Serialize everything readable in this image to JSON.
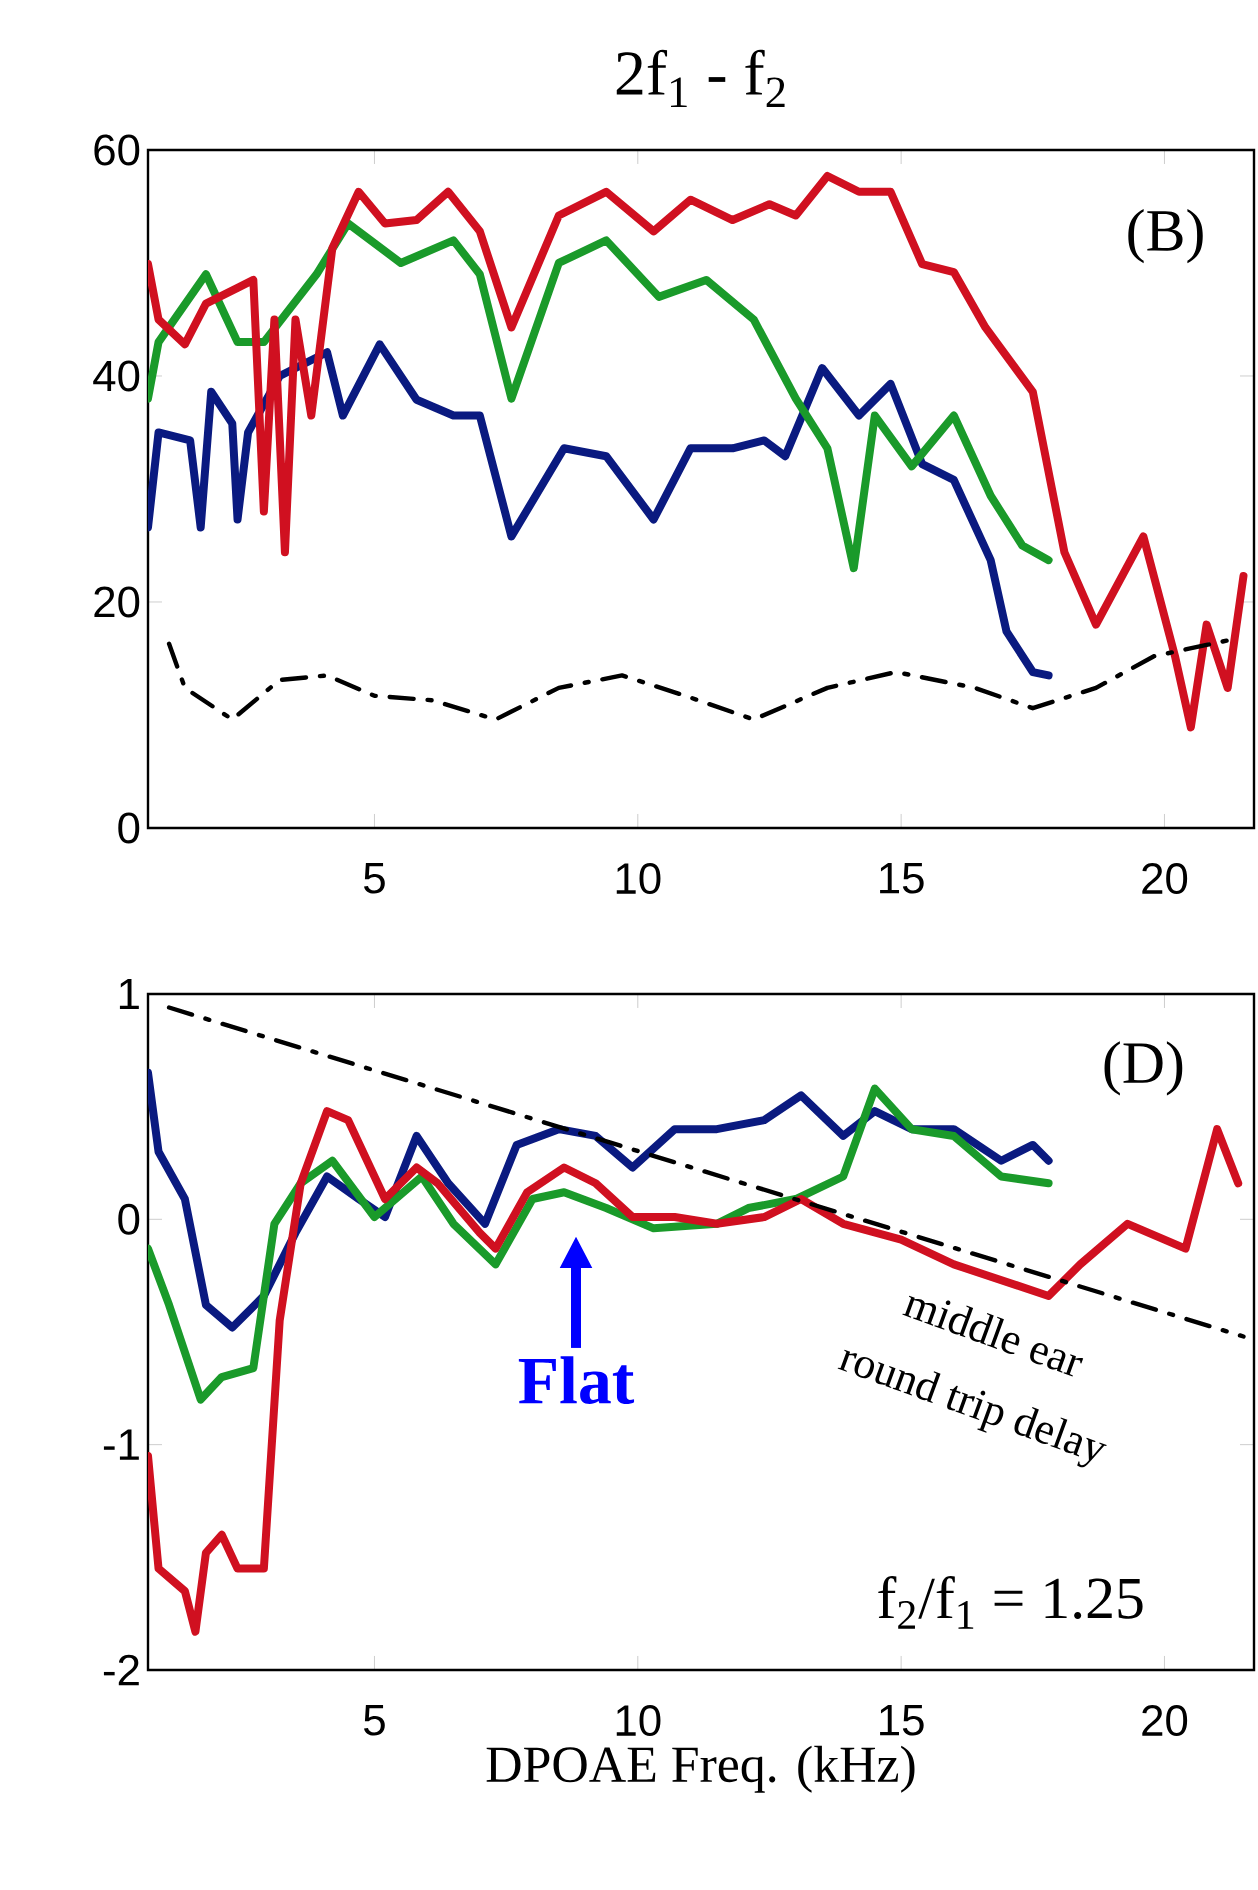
{
  "chart_data": [
    {
      "type": "line",
      "title": "2f$_{1}$ - f$_{2}$",
      "xlim": [
        0.7,
        21.7
      ],
      "ylim": [
        0,
        60
      ],
      "xticks": [
        5,
        10,
        15,
        20
      ],
      "yticks": [
        0,
        20,
        40,
        60
      ],
      "annotations": [
        "(B)"
      ],
      "series": [
        {
          "color": "#0a1a80",
          "x": [
            0.7,
            0.9,
            1.5,
            1.7,
            1.9,
            2.3,
            2.4,
            2.6,
            3.2,
            4.1,
            4.4,
            5.1,
            5.8,
            6.5,
            7.0,
            7.6,
            8.6,
            9.4,
            10.3,
            11.0,
            11.8,
            12.4,
            12.8,
            13.5,
            14.2,
            14.8,
            15.4,
            16.0,
            16.7,
            17.0,
            17.5,
            17.8
          ],
          "values": [
            26.6,
            35,
            34.3,
            26.6,
            38.6,
            35.8,
            27.3,
            35,
            40,
            42.1,
            36.5,
            42.8,
            37.9,
            36.5,
            36.5,
            25.8,
            33.6,
            32.9,
            27.3,
            33.6,
            33.6,
            34.3,
            32.9,
            40.7,
            36.5,
            39.3,
            32.2,
            30.8,
            23.7,
            17.4,
            13.8,
            13.5
          ]
        },
        {
          "color": "#1a9a2a",
          "x": [
            0.7,
            0.9,
            1.8,
            2.4,
            2.9,
            3.9,
            4.5,
            5.5,
            6.5,
            7.0,
            7.6,
            8.5,
            9.4,
            10.4,
            11.3,
            12.2,
            13.0,
            13.6,
            14.1,
            14.5,
            15.2,
            16.0,
            16.7,
            17.3,
            17.8
          ],
          "values": [
            38,
            43,
            49,
            43,
            43,
            49,
            53.5,
            50,
            52,
            49,
            38,
            50,
            52,
            47,
            48.5,
            45,
            38,
            33.6,
            23,
            36.5,
            32,
            36.5,
            29.4,
            25,
            23.7
          ]
        },
        {
          "color": "#d01020",
          "x": [
            0.7,
            0.9,
            1.4,
            1.8,
            2.4,
            2.7,
            2.9,
            3.1,
            3.3,
            3.5,
            3.8,
            4.2,
            4.7,
            5.2,
            5.8,
            6.4,
            7.0,
            7.6,
            8.5,
            9.4,
            10.3,
            11.0,
            11.8,
            12.5,
            13.0,
            13.6,
            14.2,
            14.8,
            15.4,
            16.0,
            16.6,
            17.5,
            18.1,
            18.7,
            19.6,
            20.2,
            20.5,
            20.8,
            21.2,
            21.5
          ],
          "values": [
            49.9,
            45,
            42.8,
            46.4,
            47.8,
            48.5,
            28,
            45,
            24.4,
            45,
            36.5,
            51.3,
            56.3,
            53.5,
            53.8,
            56.3,
            52.8,
            44.3,
            54.2,
            56.3,
            52.8,
            55.6,
            53.8,
            55.2,
            54.2,
            57.7,
            56.3,
            56.3,
            49.9,
            49.2,
            44.3,
            38.6,
            24.4,
            18,
            25.8,
            15.2,
            8.9,
            18,
            12.4,
            22.3
          ]
        },
        {
          "color": "#000000",
          "line_style": "dashdot",
          "x": [
            1.1,
            1.4,
            2.3,
            3.2,
            4.1,
            5.0,
            6.1,
            7.3,
            8.5,
            9.7,
            10.9,
            12.2,
            13.6,
            14.9,
            16.4,
            17.5,
            18.7,
            19.8,
            21.2
          ],
          "values": [
            16.3,
            12.4,
            9.6,
            13.1,
            13.5,
            11.7,
            11.3,
            9.6,
            12.4,
            13.5,
            11.7,
            9.6,
            12.4,
            13.8,
            12.4,
            10.6,
            12.4,
            15.2,
            16.6
          ]
        }
      ]
    },
    {
      "type": "line",
      "xlabel": "DPOAE Freq. (kHz)",
      "xlim": [
        0.7,
        21.7
      ],
      "ylim": [
        -2,
        1
      ],
      "xticks": [
        5,
        10,
        15,
        20
      ],
      "yticks": [
        -2,
        -1,
        0,
        1
      ],
      "annotations": [
        "(D)",
        "Flat",
        "middle ear",
        "round trip delay",
        "f$_{2}$/f$_{1}$ = 1.25"
      ],
      "series": [
        {
          "color": "#0a1a80",
          "x": [
            0.7,
            0.9,
            1.4,
            1.8,
            2.3,
            2.9,
            3.5,
            4.1,
            4.7,
            5.2,
            5.8,
            6.4,
            7.1,
            7.7,
            8.5,
            9.2,
            9.9,
            10.7,
            11.5,
            12.4,
            13.1,
            13.9,
            14.5,
            15.2,
            16.0,
            16.9,
            17.5,
            17.8
          ],
          "values": [
            0.65,
            0.3,
            0.09,
            -0.38,
            -0.48,
            -0.34,
            -0.06,
            0.19,
            0.09,
            0.01,
            0.37,
            0.16,
            -0.02,
            0.33,
            0.4,
            0.37,
            0.23,
            0.4,
            0.4,
            0.44,
            0.55,
            0.37,
            0.48,
            0.4,
            0.4,
            0.26,
            0.33,
            0.26
          ]
        },
        {
          "color": "#1a9a2a",
          "x": [
            0.7,
            1.1,
            1.7,
            2.1,
            2.7,
            3.1,
            3.6,
            4.2,
            5.0,
            5.9,
            6.5,
            7.3,
            8.0,
            8.6,
            9.4,
            10.3,
            11.5,
            12.1,
            13.0,
            13.9,
            14.5,
            15.2,
            16.0,
            16.9,
            17.8
          ],
          "values": [
            -0.13,
            -0.38,
            -0.8,
            -0.7,
            -0.66,
            -0.02,
            0.16,
            0.26,
            0.01,
            0.19,
            -0.02,
            -0.2,
            0.09,
            0.12,
            0.05,
            -0.04,
            -0.02,
            0.05,
            0.09,
            0.19,
            0.58,
            0.4,
            0.37,
            0.19,
            0.16
          ]
        },
        {
          "color": "#d01020",
          "x": [
            0.7,
            0.9,
            1.4,
            1.6,
            1.8,
            2.1,
            2.4,
            2.9,
            3.2,
            3.6,
            4.1,
            4.5,
            5.2,
            5.8,
            6.2,
            7.0,
            7.3,
            7.9,
            8.6,
            9.2,
            9.9,
            10.7,
            11.5,
            12.4,
            13.1,
            13.9,
            15.0,
            16.0,
            16.9,
            17.8,
            18.4,
            19.3,
            20.4,
            21.0,
            21.4
          ],
          "values": [
            -1.05,
            -1.55,
            -1.65,
            -1.83,
            -1.48,
            -1.4,
            -1.55,
            -1.55,
            -0.45,
            0.16,
            0.48,
            0.44,
            0.09,
            0.23,
            0.16,
            -0.06,
            -0.13,
            0.12,
            0.23,
            0.16,
            0.01,
            0.01,
            -0.02,
            0.01,
            0.09,
            -0.02,
            -0.09,
            -0.2,
            -0.27,
            -0.34,
            -0.2,
            -0.02,
            -0.13,
            0.4,
            0.16
          ]
        },
        {
          "color": "#000000",
          "line_style": "dashdot",
          "x": [
            1.1,
            21.5
          ],
          "values": [
            0.94,
            -0.52
          ]
        }
      ]
    }
  ]
}
